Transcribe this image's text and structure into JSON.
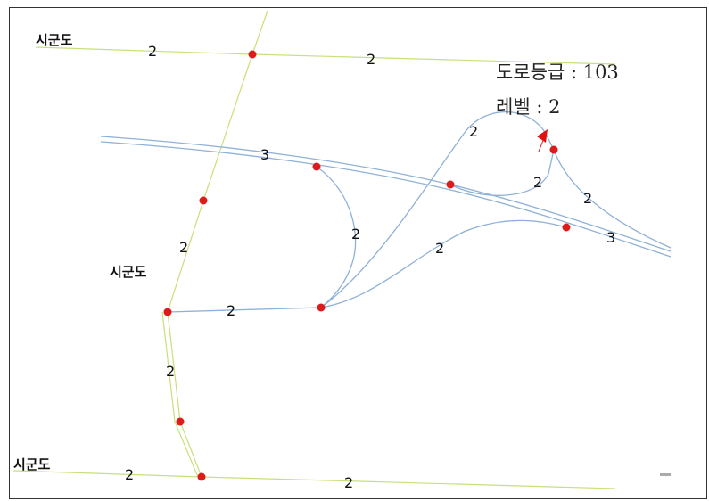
{
  "colors": {
    "local_road": "#c8e07a",
    "ramp": "#8eb1d8",
    "node": "#dd1b1b",
    "cursor": "#e01010"
  },
  "info_box": {
    "road_grade": "도로등급 : 103",
    "level": "레벨 : 2"
  },
  "region_labels": [
    "시군도",
    "시군도",
    "시군도"
  ],
  "road_levels": [
    "2",
    "2",
    "2",
    "3",
    "2",
    "2",
    "2",
    "2",
    "2",
    "2",
    "3",
    "2",
    "2",
    "2"
  ]
}
